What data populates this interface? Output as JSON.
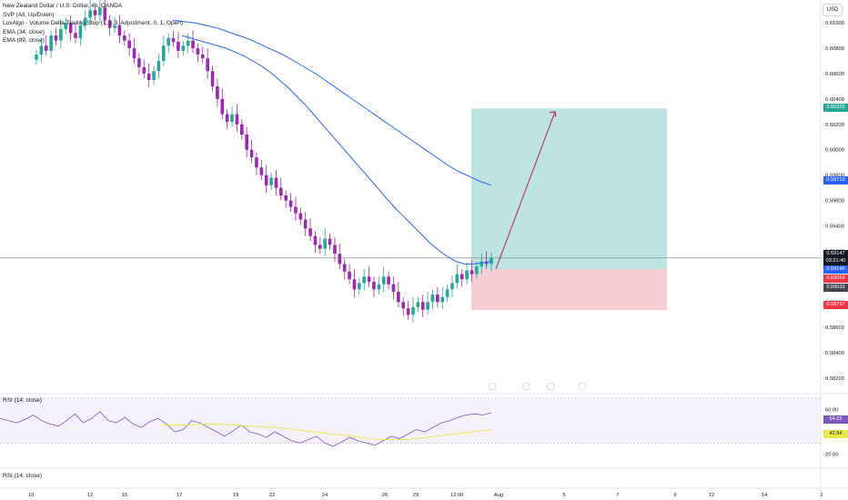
{
  "legend": {
    "title": "New Zealand Dollar / U.S. Dollar, 4h, OANDA",
    "indicators": [
      "SVP (All, Up/Down)",
      "LuxAlgo - Volume Delta Trailing Stop (1, 1.3, Adjustment, 0, 1, Open)",
      "EMA (34, close)",
      "EMA (89, close)"
    ]
  },
  "currency_button": "USD",
  "rsi_panel_label": "RSI (14, close)",
  "bottom_panel_label": "RSI (14, close)",
  "colors": {
    "bull": "#26a69a",
    "bear": "#9c27b0",
    "ema": "#2962ff",
    "target_zone": "#b2dfdb",
    "stop_zone": "#f5c6cb",
    "arrow": "#c2185b",
    "rsi": "#7e57c2",
    "rsi_ma": "#e8e84a"
  },
  "price_tags": [
    {
      "value": "0.60325",
      "color": "#26a69a"
    },
    {
      "value": "0.59719",
      "color": "#2962ff"
    },
    {
      "value": "0.59147",
      "color": "#131722"
    },
    {
      "value": "03:21:40",
      "color": "#131722"
    },
    {
      "value": "0.59146",
      "color": "#2962ff"
    },
    {
      "value": "0.59059",
      "color": "#f23645"
    },
    {
      "value": "0.59033",
      "color": "#434651"
    },
    {
      "value": "0.58737",
      "color": "#f23645"
    }
  ],
  "rsi_tags": [
    {
      "value": "54.22",
      "color": "#7e57c2"
    },
    {
      "value": "42.54",
      "color": "#e8e84a"
    }
  ],
  "chart_data": {
    "type": "candlestick",
    "symbol": "NZDUSD",
    "timeframe": "4h",
    "y_ticks": [
      "0.61000",
      "0.60800",
      "0.60600",
      "0.60400",
      "0.60200",
      "0.60000",
      "0.59800",
      "0.59600",
      "0.59400",
      "0.59200",
      "0.59000",
      "0.58800",
      "0.58600",
      "0.58400",
      "0.58200"
    ],
    "ylim": [
      0.581,
      0.6118
    ],
    "x_ticks": [
      "10",
      "12",
      "15",
      "17",
      "19",
      "22",
      "24",
      "26",
      "29",
      "12:00",
      "Aug",
      "5",
      "7",
      "9",
      "12",
      "14",
      "1"
    ],
    "closes": [
      0.6075,
      0.6082,
      0.6078,
      0.609,
      0.6086,
      0.6095,
      0.61,
      0.6092,
      0.6088,
      0.6098,
      0.6104,
      0.611,
      0.6106,
      0.6112,
      0.6102,
      0.6096,
      0.6098,
      0.609,
      0.6086,
      0.608,
      0.6072,
      0.6065,
      0.606,
      0.6055,
      0.6062,
      0.607,
      0.6082,
      0.6088,
      0.6085,
      0.6078,
      0.6082,
      0.6086,
      0.608,
      0.6075,
      0.6072,
      0.6062,
      0.605,
      0.604,
      0.6028,
      0.6022,
      0.6028,
      0.602,
      0.6012,
      0.6,
      0.5994,
      0.5986,
      0.598,
      0.5972,
      0.5978,
      0.597,
      0.5964,
      0.596,
      0.5955,
      0.595,
      0.5945,
      0.5938,
      0.5932,
      0.5925,
      0.5922,
      0.593,
      0.5925,
      0.5918,
      0.591,
      0.5904,
      0.5898,
      0.589,
      0.5895,
      0.59,
      0.5896,
      0.589,
      0.5894,
      0.59,
      0.5894,
      0.5888,
      0.588,
      0.5875,
      0.587,
      0.5876,
      0.588,
      0.5874,
      0.588,
      0.5886,
      0.588,
      0.5884,
      0.589,
      0.5895,
      0.5902,
      0.5898,
      0.5905,
      0.5902,
      0.5908,
      0.5912,
      0.591,
      0.5915
    ],
    "ema34": [
      0.609,
      0.6088,
      0.6086,
      0.6084,
      0.6082,
      0.608,
      0.6077,
      0.6074,
      0.607,
      0.6066,
      0.6061,
      0.6055,
      0.6049,
      0.6042,
      0.6035,
      0.6027,
      0.6019,
      0.6011,
      0.6003,
      0.5995,
      0.5987,
      0.5979,
      0.5971,
      0.5963,
      0.5955,
      0.5948,
      0.5941,
      0.5934,
      0.5927,
      0.5921,
      0.5916,
      0.5912,
      0.591,
      0.591,
      0.5911,
      0.5912
    ],
    "ema89": [
      0.6102,
      0.6101,
      0.61,
      0.6098,
      0.6096,
      0.6093,
      0.609,
      0.6087,
      0.6083,
      0.6079,
      0.6075,
      0.607,
      0.6065,
      0.606,
      0.6054,
      0.6048,
      0.6042,
      0.6036,
      0.603,
      0.6024,
      0.6018,
      0.6012,
      0.6006,
      0.6,
      0.5994,
      0.5988,
      0.5983,
      0.5979,
      0.5975,
      0.5972
    ],
    "position": {
      "entry": 0.5906,
      "target": 0.60325,
      "stop": 0.58737
    },
    "rsi": {
      "ticks": [
        "60.00",
        "20.00"
      ],
      "ylim": [
        10,
        70
      ],
      "values": [
        52,
        50,
        48,
        51,
        55,
        50,
        47,
        45,
        50,
        56,
        48,
        52,
        58,
        50,
        48,
        53,
        47,
        44,
        49,
        52,
        47,
        40,
        42,
        50,
        48,
        44,
        40,
        36,
        41,
        46,
        40,
        38,
        35,
        40,
        36,
        32,
        30,
        33,
        36,
        30,
        27,
        31,
        35,
        32,
        30,
        28,
        32,
        36,
        34,
        38,
        42,
        40,
        44,
        48,
        50,
        53,
        55,
        56,
        55,
        57
      ],
      "ma": [
        46,
        46,
        46,
        46,
        47,
        47,
        47,
        46,
        46,
        45,
        45,
        44,
        44,
        43,
        42,
        41,
        40,
        39,
        38,
        37,
        36,
        35,
        34,
        33,
        33,
        33,
        33,
        34,
        35,
        36,
        37,
        38,
        39,
        40,
        41,
        42
      ]
    }
  }
}
